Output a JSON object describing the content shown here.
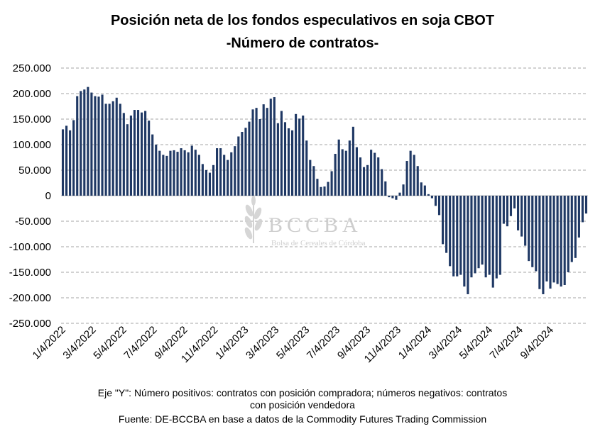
{
  "chart_data": {
    "type": "bar",
    "title": "Posición neta de los fondos especulativos en soja CBOT",
    "subtitle": "-Número de contratos-",
    "xlabel": "",
    "ylabel": "",
    "ylim": [
      -250000,
      250000
    ],
    "y_ticks": [
      250000,
      200000,
      150000,
      100000,
      50000,
      0,
      -50000,
      -100000,
      -150000,
      -200000,
      -250000
    ],
    "y_tick_labels": [
      "250.000",
      "200.000",
      "150.000",
      "100.000",
      "50.000",
      "0",
      "-50.000",
      "-100.000",
      "-150.000",
      "-200.000",
      "-250.000"
    ],
    "x_tick_labels": [
      "1/4/2022",
      "3/4/2022",
      "5/4/2022",
      "7/4/2022",
      "9/4/2022",
      "11/4/2022",
      "1/4/2023",
      "3/4/2023",
      "5/4/2023",
      "7/4/2023",
      "9/4/2023",
      "11/4/2023",
      "1/4/2024",
      "3/4/2024",
      "5/4/2024",
      "7/4/2024",
      "9/4/2024"
    ],
    "grid": true,
    "bar_color": "#1f3864",
    "values": [
      130000,
      137000,
      128000,
      148000,
      195000,
      205000,
      208000,
      213000,
      202000,
      195000,
      194000,
      198000,
      180000,
      180000,
      185000,
      192000,
      180000,
      162000,
      140000,
      157000,
      168000,
      168000,
      163000,
      166000,
      147000,
      120000,
      100000,
      88000,
      80000,
      78000,
      88000,
      89000,
      86000,
      93000,
      89000,
      85000,
      98000,
      90000,
      80000,
      62000,
      50000,
      45000,
      60000,
      93000,
      93000,
      80000,
      70000,
      85000,
      97000,
      116000,
      125000,
      133000,
      145000,
      169000,
      172000,
      150000,
      179000,
      172000,
      190000,
      193000,
      142000,
      166000,
      144000,
      132000,
      128000,
      160000,
      151000,
      157000,
      108000,
      70000,
      58000,
      33000,
      17000,
      18000,
      27000,
      48000,
      82000,
      110000,
      91000,
      88000,
      108000,
      135000,
      95000,
      75000,
      56000,
      60000,
      90000,
      84000,
      75000,
      52000,
      28000,
      -3000,
      -5000,
      -8000,
      6000,
      22000,
      68000,
      88000,
      80000,
      58000,
      26000,
      20000,
      3000,
      -5000,
      -20000,
      -38000,
      -95000,
      -112000,
      -138000,
      -158000,
      -158000,
      -155000,
      -178000,
      -193000,
      -160000,
      -152000,
      -142000,
      -135000,
      -160000,
      -155000,
      -180000,
      -162000,
      -155000,
      -55000,
      -60000,
      -40000,
      -25000,
      -68000,
      -80000,
      -98000,
      -128000,
      -140000,
      -148000,
      -183000,
      -193000,
      -168000,
      -182000,
      -170000,
      -173000,
      -178000,
      -175000,
      -150000,
      -130000,
      -122000,
      -82000,
      -52000,
      -35000
    ]
  },
  "watermark": {
    "name": "BCCBA",
    "subtitle": "Bolsa de Cereales de Córdoba"
  },
  "footer": {
    "note_line1": "Eje \"Y\": Número positivos: contratos con posición compradora; números negativos: contratos",
    "note_line2": "con posición vendedora",
    "source": "Fuente: DE-BCCBA en base a datos de la Commodity Futures Trading Commission"
  }
}
